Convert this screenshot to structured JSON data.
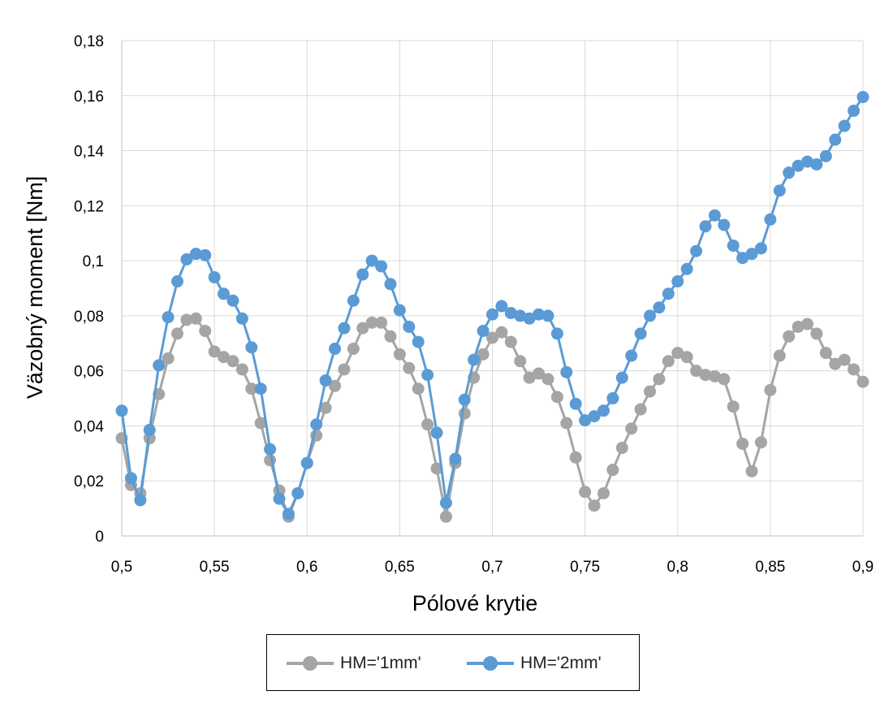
{
  "chart_data": {
    "type": "line",
    "xlabel": "Pólové krytie",
    "ylabel": "Väzobný moment [Nm]",
    "xlim": [
      0.5,
      0.9
    ],
    "ylim": [
      0,
      0.18
    ],
    "x_ticks": [
      {
        "value": 0.5,
        "label": "0,5"
      },
      {
        "value": 0.55,
        "label": "0,55"
      },
      {
        "value": 0.6,
        "label": "0,6"
      },
      {
        "value": 0.65,
        "label": "0,65"
      },
      {
        "value": 0.7,
        "label": "0,7"
      },
      {
        "value": 0.75,
        "label": "0,75"
      },
      {
        "value": 0.8,
        "label": "0,8"
      },
      {
        "value": 0.85,
        "label": "0,85"
      },
      {
        "value": 0.9,
        "label": "0,9"
      }
    ],
    "y_ticks": [
      {
        "value": 0,
        "label": "0"
      },
      {
        "value": 0.02,
        "label": "0,02"
      },
      {
        "value": 0.04,
        "label": "0,04"
      },
      {
        "value": 0.06,
        "label": "0,06"
      },
      {
        "value": 0.08,
        "label": "0,08"
      },
      {
        "value": 0.1,
        "label": "0,1"
      },
      {
        "value": 0.12,
        "label": "0,12"
      },
      {
        "value": 0.14,
        "label": "0,14"
      },
      {
        "value": 0.16,
        "label": "0,16"
      },
      {
        "value": 0.18,
        "label": "0,18"
      }
    ],
    "grid": true,
    "legend_position": "bottom",
    "x": [
      0.5,
      0.505,
      0.51,
      0.515,
      0.52,
      0.525,
      0.53,
      0.535,
      0.54,
      0.545,
      0.55,
      0.555,
      0.56,
      0.565,
      0.57,
      0.575,
      0.58,
      0.585,
      0.59,
      0.595,
      0.6,
      0.605,
      0.61,
      0.615,
      0.62,
      0.625,
      0.63,
      0.635,
      0.64,
      0.645,
      0.65,
      0.655,
      0.66,
      0.665,
      0.67,
      0.675,
      0.68,
      0.685,
      0.69,
      0.695,
      0.7,
      0.705,
      0.71,
      0.715,
      0.72,
      0.725,
      0.73,
      0.735,
      0.74,
      0.745,
      0.75,
      0.755,
      0.76,
      0.765,
      0.77,
      0.775,
      0.78,
      0.785,
      0.79,
      0.795,
      0.8,
      0.805,
      0.81,
      0.815,
      0.82,
      0.825,
      0.83,
      0.835,
      0.84,
      0.845,
      0.85,
      0.855,
      0.86,
      0.865,
      0.87,
      0.875,
      0.88,
      0.885,
      0.89,
      0.895,
      0.9
    ],
    "series": [
      {
        "name": "HM='1mm'",
        "color": "#a5a5a5",
        "values": [
          0.0355,
          0.0185,
          0.0155,
          0.0355,
          0.0515,
          0.0645,
          0.0735,
          0.0785,
          0.079,
          0.0745,
          0.067,
          0.065,
          0.0635,
          0.0605,
          0.0535,
          0.041,
          0.0275,
          0.0165,
          0.007,
          0.0155,
          0.0265,
          0.0365,
          0.0465,
          0.0545,
          0.0605,
          0.068,
          0.0755,
          0.0775,
          0.0775,
          0.0725,
          0.066,
          0.061,
          0.0535,
          0.0405,
          0.0245,
          0.007,
          0.0265,
          0.0445,
          0.0575,
          0.066,
          0.072,
          0.074,
          0.0705,
          0.0635,
          0.0575,
          0.059,
          0.057,
          0.0505,
          0.041,
          0.0285,
          0.016,
          0.011,
          0.0155,
          0.024,
          0.032,
          0.039,
          0.046,
          0.0525,
          0.057,
          0.0635,
          0.0665,
          0.065,
          0.06,
          0.0585,
          0.058,
          0.057,
          0.047,
          0.0335,
          0.0235,
          0.034,
          0.053,
          0.0655,
          0.0725,
          0.076,
          0.077,
          0.0735,
          0.0665,
          0.0625,
          0.064,
          0.0605,
          0.056
        ]
      },
      {
        "name": "HM='2mm'",
        "color": "#5b9bd5",
        "values": [
          0.0455,
          0.021,
          0.013,
          0.0385,
          0.062,
          0.0795,
          0.0925,
          0.1005,
          0.1025,
          0.102,
          0.094,
          0.088,
          0.0855,
          0.079,
          0.0685,
          0.0535,
          0.0315,
          0.0135,
          0.008,
          0.0155,
          0.0265,
          0.0405,
          0.0565,
          0.068,
          0.0755,
          0.0855,
          0.095,
          0.1,
          0.098,
          0.0915,
          0.082,
          0.076,
          0.0705,
          0.0585,
          0.0375,
          0.012,
          0.028,
          0.0495,
          0.064,
          0.0745,
          0.0805,
          0.0835,
          0.081,
          0.08,
          0.079,
          0.0805,
          0.08,
          0.0735,
          0.0595,
          0.048,
          0.042,
          0.0435,
          0.0455,
          0.05,
          0.0575,
          0.0655,
          0.0735,
          0.08,
          0.083,
          0.088,
          0.0925,
          0.097,
          0.1035,
          0.1125,
          0.1165,
          0.113,
          0.1055,
          0.101,
          0.1025,
          0.1045,
          0.115,
          0.1255,
          0.132,
          0.1345,
          0.136,
          0.135,
          0.138,
          0.144,
          0.149,
          0.1545,
          0.1595
        ]
      }
    ]
  }
}
